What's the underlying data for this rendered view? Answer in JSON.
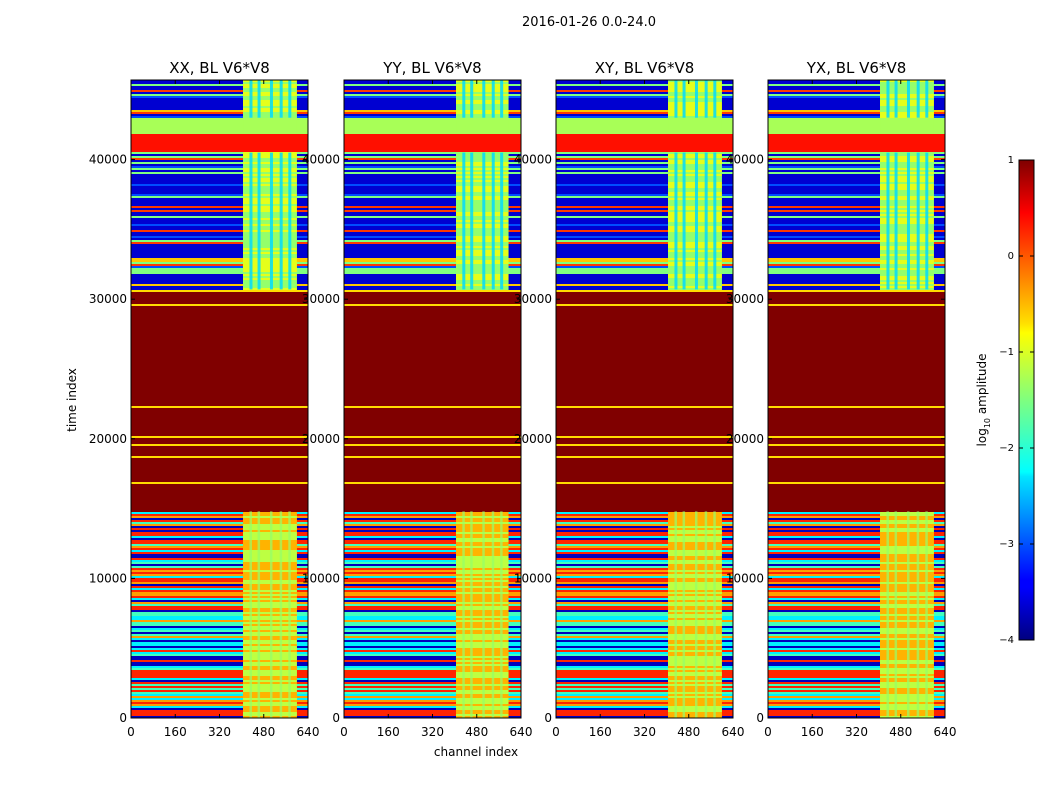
{
  "chart_data": {
    "type": "heatmap",
    "suptitle": "2016-01-26 0.0-24.0",
    "xlabel": "channel index",
    "ylabel": "time index",
    "xlim": [
      0,
      640
    ],
    "ylim": [
      0,
      45700
    ],
    "x_ticks": [
      0,
      160,
      320,
      480,
      640
    ],
    "y_ticks": [
      0,
      10000,
      20000,
      30000,
      40000
    ],
    "x_tick_labels": [
      "0",
      "160",
      "320",
      "480",
      "640"
    ],
    "y_tick_labels": [
      "0",
      "10000",
      "20000",
      "30000",
      "40000"
    ],
    "colorbar": {
      "label_prefix": "log",
      "label_sub": "10",
      "label_suffix": " amplitude",
      "range": [
        -4,
        1
      ],
      "ticks": [
        1,
        0,
        -1,
        -2,
        -3,
        -4
      ],
      "tick_labels": [
        "1",
        "0",
        "−1",
        "−2",
        "−3",
        "−4"
      ],
      "colormap": "jet"
    },
    "panels": [
      {
        "title": "XX, BL V6*V8",
        "band_channels": [
          405,
          600
        ]
      },
      {
        "title": "YY, BL V6*V8",
        "band_channels": [
          405,
          595
        ]
      },
      {
        "title": "XY, BL V6*V8",
        "band_channels": [
          405,
          600
        ]
      },
      {
        "title": "YX, BL V6*V8",
        "band_channels": [
          405,
          600
        ]
      }
    ],
    "time_regions": [
      {
        "range": [
          0,
          14800
        ],
        "description": "mixed amplitudes, mostly -3 to 0",
        "mean_log_amplitude": -2.2
      },
      {
        "range": [
          14800,
          30700
        ],
        "description": "saturated, near max",
        "mean_log_amplitude": 1.0
      },
      {
        "range": [
          30700,
          40500
        ],
        "description": "low amplitudes",
        "mean_log_amplitude": -3.5
      },
      {
        "range": [
          40500,
          41800
        ],
        "description": "strong band",
        "mean_log_amplitude": 0.3
      },
      {
        "range": [
          41800,
          43000
        ],
        "description": "moderate band",
        "mean_log_amplitude": -1.3
      },
      {
        "range": [
          43000,
          45700
        ],
        "description": "low amplitudes",
        "mean_log_amplitude": -3.5
      }
    ]
  }
}
